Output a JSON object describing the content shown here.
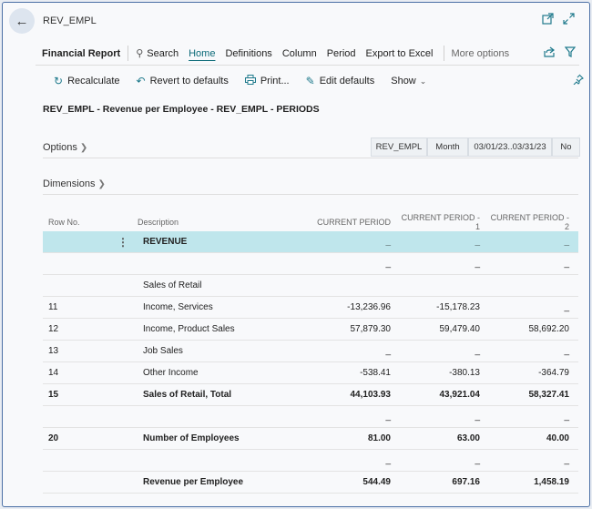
{
  "window": {
    "title": "REV_EMPL",
    "back_icon": "arrow-left-icon",
    "open_new_icon": "open-in-new-window-icon",
    "expand_icon": "expand-icon"
  },
  "menu": {
    "page_name": "Financial Report",
    "items": [
      "Search",
      "Home",
      "Definitions",
      "Column",
      "Period",
      "Export to Excel"
    ],
    "more": "More options",
    "active": "Home"
  },
  "actions": {
    "recalculate": "Recalculate",
    "revert": "Revert to defaults",
    "print": "Print...",
    "edit_defaults": "Edit defaults",
    "show": "Show"
  },
  "report_title": "REV_EMPL - Revenue per Employee - REV_EMPL - PERIODS",
  "options": {
    "label": "Options",
    "chips": [
      "REV_EMPL",
      "Month",
      "03/01/23..03/31/23",
      "No"
    ]
  },
  "dimensions": {
    "label": "Dimensions"
  },
  "table": {
    "headers": {
      "row_no": "Row No.",
      "description": "Description",
      "p0": "CURRENT PERIOD",
      "p1": "CURRENT PERIOD - 1",
      "p2": "CURRENT PERIOD - 2"
    },
    "rows": [
      {
        "row_no": "",
        "description": "REVENUE",
        "p0": "_",
        "p1": "_",
        "p2": "_",
        "bold": true,
        "selected": true
      },
      {
        "row_no": "",
        "description": "",
        "p0": "_",
        "p1": "_",
        "p2": "_",
        "bold": false,
        "selected": false
      },
      {
        "row_no": "",
        "description": "Sales of Retail",
        "p0": "",
        "p1": "",
        "p2": "",
        "bold": false,
        "selected": false
      },
      {
        "row_no": "11",
        "description": "Income, Services",
        "p0": "-13,236.96",
        "p1": "-15,178.23",
        "p2": "_",
        "bold": false,
        "selected": false
      },
      {
        "row_no": "12",
        "description": "Income, Product Sales",
        "p0": "57,879.30",
        "p1": "59,479.40",
        "p2": "58,692.20",
        "bold": false,
        "selected": false
      },
      {
        "row_no": "13",
        "description": "Job Sales",
        "p0": "_",
        "p1": "_",
        "p2": "_",
        "bold": false,
        "selected": false
      },
      {
        "row_no": "14",
        "description": "Other Income",
        "p0": "-538.41",
        "p1": "-380.13",
        "p2": "-364.79",
        "bold": false,
        "selected": false
      },
      {
        "row_no": "15",
        "description": "Sales of Retail, Total",
        "p0": "44,103.93",
        "p1": "43,921.04",
        "p2": "58,327.41",
        "bold": true,
        "selected": false
      },
      {
        "row_no": "",
        "description": "",
        "p0": "_",
        "p1": "_",
        "p2": "_",
        "bold": false,
        "selected": false
      },
      {
        "row_no": "20",
        "description": "Number of Employees",
        "p0": "81.00",
        "p1": "63.00",
        "p2": "40.00",
        "bold": true,
        "selected": false
      },
      {
        "row_no": "",
        "description": "",
        "p0": "_",
        "p1": "_",
        "p2": "_",
        "bold": false,
        "selected": false
      },
      {
        "row_no": "",
        "description": "Revenue per Employee",
        "p0": "544.49",
        "p1": "697.16",
        "p2": "1,458.19",
        "bold": true,
        "selected": false
      }
    ]
  },
  "colors": {
    "accent": "#0b6a78",
    "selected_row": "#bfe6ec",
    "frame_border": "#4a6fa5"
  }
}
